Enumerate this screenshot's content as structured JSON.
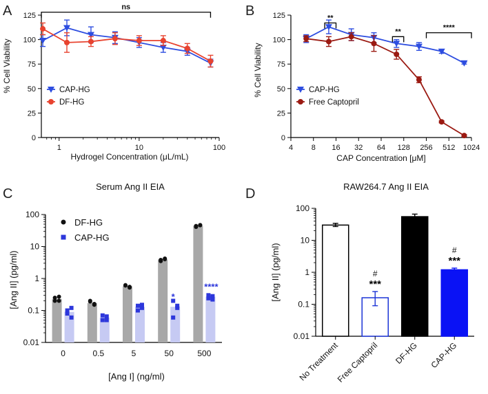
{
  "chart_data": [
    {
      "panel": "A",
      "type": "line",
      "xscale": "log",
      "xlabel": "Hydrogel Concentration (μL/mL)",
      "ylabel": "% Cell Viability",
      "xlim": [
        0.6,
        100
      ],
      "ylim": [
        0,
        125
      ],
      "xticks": [
        1,
        10,
        100
      ],
      "xtick_labels": [
        "1",
        "10",
        "100"
      ],
      "yticks": [
        0,
        25,
        50,
        75,
        100,
        125
      ],
      "ytick_labels": [
        "0",
        "25",
        "50",
        "75",
        "100",
        "125"
      ],
      "legend_position": "bottom-left",
      "significance": [
        {
          "x1": 0.6,
          "x2": 78,
          "y": 128,
          "label": "ns"
        }
      ],
      "series": [
        {
          "name": "CAP-HG",
          "color": "#2d4de0",
          "marker": "triangle-down",
          "x": [
            0.625,
            1.25,
            2.5,
            5,
            10,
            20,
            40,
            78
          ],
          "y": [
            99,
            112,
            105,
            102,
            97,
            92,
            88,
            76
          ],
          "err": [
            6,
            8,
            8,
            6,
            5,
            5,
            4,
            4
          ]
        },
        {
          "name": "DF-HG",
          "color": "#e8432f",
          "marker": "circle",
          "x": [
            0.625,
            1.25,
            2.5,
            5,
            10,
            20,
            40,
            78
          ],
          "y": [
            111,
            97,
            98,
            101,
            99,
            99,
            91,
            78
          ],
          "err": [
            6,
            10,
            5,
            6,
            5,
            5,
            5,
            6
          ]
        }
      ]
    },
    {
      "panel": "B",
      "type": "line",
      "xscale": "log2",
      "xlabel": "CAP Concentration [μM]",
      "ylabel": "% Cell Viability",
      "xlim": [
        4,
        1024
      ],
      "ylim": [
        0,
        125
      ],
      "xticks": [
        4,
        8,
        16,
        32,
        64,
        128,
        256,
        512,
        1024
      ],
      "xtick_labels": [
        "4",
        "8",
        "16",
        "32",
        "64",
        "128",
        "256",
        "512",
        "1024"
      ],
      "yticks": [
        0,
        25,
        50,
        75,
        100,
        125
      ],
      "ytick_labels": [
        "0",
        "25",
        "50",
        "75",
        "100",
        "125"
      ],
      "legend_position": "bottom-left",
      "significance": [
        {
          "x1": 11.3,
          "x2": 16,
          "y": 117,
          "label": "**"
        },
        {
          "x1": 90.5,
          "x2": 128,
          "y": 103,
          "label": "**"
        },
        {
          "x1": 256,
          "x2": 1024,
          "y": 107,
          "label": "****"
        }
      ],
      "series": [
        {
          "name": "CAP-HG",
          "color": "#2d4de0",
          "marker": "triangle-down",
          "x": [
            6.4,
            12.8,
            25.6,
            51.2,
            102.4,
            204.8,
            409.6,
            819.2
          ],
          "y": [
            101,
            113,
            105,
            102,
            96,
            93,
            88,
            76
          ],
          "err": [
            4,
            7,
            6,
            5,
            4,
            4,
            2,
            1
          ]
        },
        {
          "name": "Free Captopril",
          "color": "#9b1a12",
          "marker": "circle",
          "x": [
            6.4,
            12.8,
            25.6,
            51.2,
            102.4,
            204.8,
            409.6,
            819.2
          ],
          "y": [
            101,
            98,
            103,
            96,
            85,
            59,
            16,
            2
          ],
          "err": [
            3,
            5,
            4,
            8,
            5,
            3,
            1,
            1
          ]
        }
      ]
    },
    {
      "panel": "C",
      "type": "bar",
      "title": "Serum Ang II EIA",
      "xlabel": "[Ang I] (ng/ml)",
      "ylabel": "[Ang II] (pg/ml)",
      "yscale": "log",
      "ylim": [
        0.01,
        100
      ],
      "yticks": [
        0.01,
        0.1,
        1,
        10,
        100
      ],
      "ytick_labels": [
        "0.01",
        "0.1",
        "1",
        "10",
        "100"
      ],
      "categories": [
        "0",
        "0.5",
        "5",
        "50",
        "500"
      ],
      "legend_position": "top-left",
      "series": [
        {
          "name": "DF-HG",
          "bar_color": "#a8a8a8",
          "marker_color": "#111111",
          "values": [
            0.23,
            0.17,
            0.57,
            3.9,
            44
          ],
          "points": [
            [
              0.2,
              0.27,
              0.25,
              0.2
            ],
            [
              0.19,
              0.16,
              0.2,
              0.15
            ],
            [
              0.62,
              0.52,
              0.6,
              0.55
            ],
            [
              3.5,
              4.2,
              3.8,
              4.0
            ],
            [
              41,
              47,
              44,
              46
            ]
          ]
        },
        {
          "name": "CAP-HG",
          "bar_color": "#c6caf3",
          "marker_color": "#2d37db",
          "values": [
            0.09,
            0.06,
            0.13,
            0.13,
            0.27
          ],
          "points": [
            [
              0.1,
              0.06,
              0.08,
              0.12
            ],
            [
              0.05,
              0.065,
              0.07,
              0.05
            ],
            [
              0.14,
              0.15,
              0.1,
              0.12
            ],
            [
              0.2,
              0.12,
              0.06,
              0.14
            ],
            [
              0.24,
              0.28,
              0.3,
              0.22
            ]
          ]
        }
      ],
      "annotations": [
        {
          "category": "50",
          "text": "*",
          "color": "#2d37db"
        },
        {
          "category": "500",
          "text": "****",
          "color": "#2d37db"
        }
      ]
    },
    {
      "panel": "D",
      "type": "bar",
      "title": "RAW264.7 Ang II EIA",
      "ylabel": "[Ang II] (pg/ml)",
      "yscale": "log",
      "ylim": [
        0.01,
        100
      ],
      "yticks": [
        0.01,
        0.1,
        1,
        10,
        100
      ],
      "ytick_labels": [
        "0.01",
        "0.1",
        "1",
        "10",
        "100"
      ],
      "categories": [
        "No Treatment",
        "Free Captopril",
        "DF-HG",
        "CAP-HG"
      ],
      "values": [
        30,
        0.16,
        55,
        1.2
      ],
      "err_lower": [
        27,
        0.09,
        45,
        1.1
      ],
      "err_upper": [
        34,
        0.25,
        66,
        1.35
      ],
      "fills": [
        "#ffffff",
        "#ffffff",
        "#000000",
        "#0a12f5"
      ],
      "strokes": [
        "#000000",
        "#1a33d6",
        "#000000",
        "#0a12f5"
      ],
      "annotations": [
        {
          "category": "Free Captopril",
          "hash": "#",
          "stars": "***"
        },
        {
          "category": "CAP-HG",
          "hash": "#",
          "stars": "***"
        }
      ]
    }
  ]
}
